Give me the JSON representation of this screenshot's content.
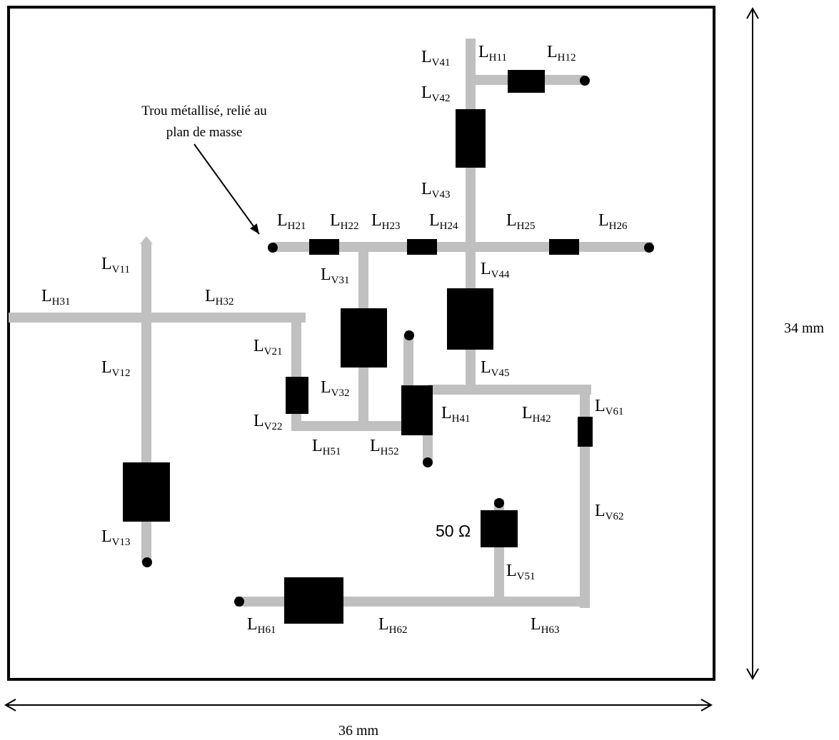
{
  "colors": {
    "trace": "#c0c0c0",
    "component": "#000000",
    "border": "#000000"
  },
  "annotation": {
    "line1": "Trou métallisé, relié au",
    "line2": "plan de masse"
  },
  "dimensions": {
    "width": "36 mm",
    "height": "34 mm"
  },
  "resistor_label": "50 Ω",
  "labels": {
    "V41": {
      "main": "L",
      "sub": "V41"
    },
    "H11": {
      "main": "L",
      "sub": "H11"
    },
    "H12": {
      "main": "L",
      "sub": "H12"
    },
    "V42": {
      "main": "L",
      "sub": "V42"
    },
    "V43": {
      "main": "L",
      "sub": "V43"
    },
    "H21": {
      "main": "L",
      "sub": "H21"
    },
    "H22": {
      "main": "L",
      "sub": "H22"
    },
    "H23": {
      "main": "L",
      "sub": "H23"
    },
    "H24": {
      "main": "L",
      "sub": "H24"
    },
    "H25": {
      "main": "L",
      "sub": "H25"
    },
    "H26": {
      "main": "L",
      "sub": "H26"
    },
    "V11": {
      "main": "L",
      "sub": "V11"
    },
    "V31": {
      "main": "L",
      "sub": "V31"
    },
    "V44": {
      "main": "L",
      "sub": "V44"
    },
    "H31": {
      "main": "L",
      "sub": "H31"
    },
    "H32": {
      "main": "L",
      "sub": "H32"
    },
    "V21": {
      "main": "L",
      "sub": "V21"
    },
    "V12": {
      "main": "L",
      "sub": "V12"
    },
    "V32": {
      "main": "L",
      "sub": "V32"
    },
    "V45": {
      "main": "L",
      "sub": "V45"
    },
    "H41": {
      "main": "L",
      "sub": "H41"
    },
    "H42": {
      "main": "L",
      "sub": "H42"
    },
    "V61": {
      "main": "L",
      "sub": "V61"
    },
    "V22": {
      "main": "L",
      "sub": "V22"
    },
    "H51": {
      "main": "L",
      "sub": "H51"
    },
    "H52": {
      "main": "L",
      "sub": "H52"
    },
    "V62": {
      "main": "L",
      "sub": "V62"
    },
    "V13": {
      "main": "L",
      "sub": "V13"
    },
    "V51": {
      "main": "L",
      "sub": "V51"
    },
    "H61": {
      "main": "L",
      "sub": "H61"
    },
    "H62": {
      "main": "L",
      "sub": "H62"
    },
    "H63": {
      "main": "L",
      "sub": "H63"
    }
  }
}
